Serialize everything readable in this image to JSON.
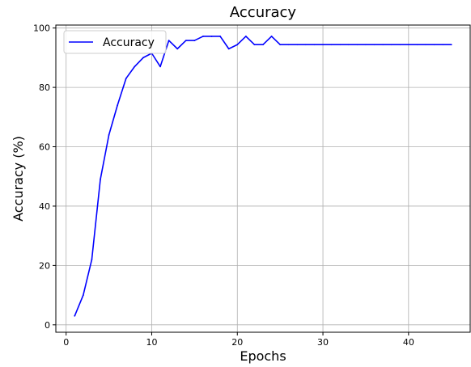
{
  "chart_data": {
    "type": "line",
    "title": "Accuracy",
    "xlabel": "Epochs",
    "ylabel": "Accuracy (%)",
    "xlim": [
      -1.2,
      47.2
    ],
    "ylim": [
      -2.5,
      101
    ],
    "xticks": [
      0,
      10,
      20,
      30,
      40
    ],
    "yticks": [
      0,
      20,
      40,
      60,
      80,
      100
    ],
    "grid": true,
    "legend_position": "top-left",
    "series": [
      {
        "name": "Accuracy",
        "color": "#0000ff",
        "x": [
          1,
          2,
          3,
          4,
          5,
          6,
          7,
          8,
          9,
          10,
          11,
          12,
          13,
          14,
          15,
          16,
          17,
          18,
          19,
          20,
          21,
          22,
          23,
          24,
          25,
          26,
          27,
          28,
          29,
          30,
          31,
          32,
          33,
          34,
          35,
          36,
          37,
          38,
          39,
          40,
          41,
          42,
          43,
          44,
          45
        ],
        "y": [
          3,
          10,
          22,
          49,
          64,
          74,
          83,
          87,
          90,
          91.5,
          87,
          95.8,
          93,
          95.8,
          95.8,
          97.2,
          97.2,
          97.2,
          93,
          94.4,
          97.2,
          94.4,
          94.4,
          97.2,
          94.4,
          94.4,
          94.4,
          94.4,
          94.4,
          94.4,
          94.4,
          94.4,
          94.4,
          94.4,
          94.4,
          94.4,
          94.4,
          94.4,
          94.4,
          94.4,
          94.4,
          94.4,
          94.4,
          94.4,
          94.4
        ]
      }
    ]
  }
}
